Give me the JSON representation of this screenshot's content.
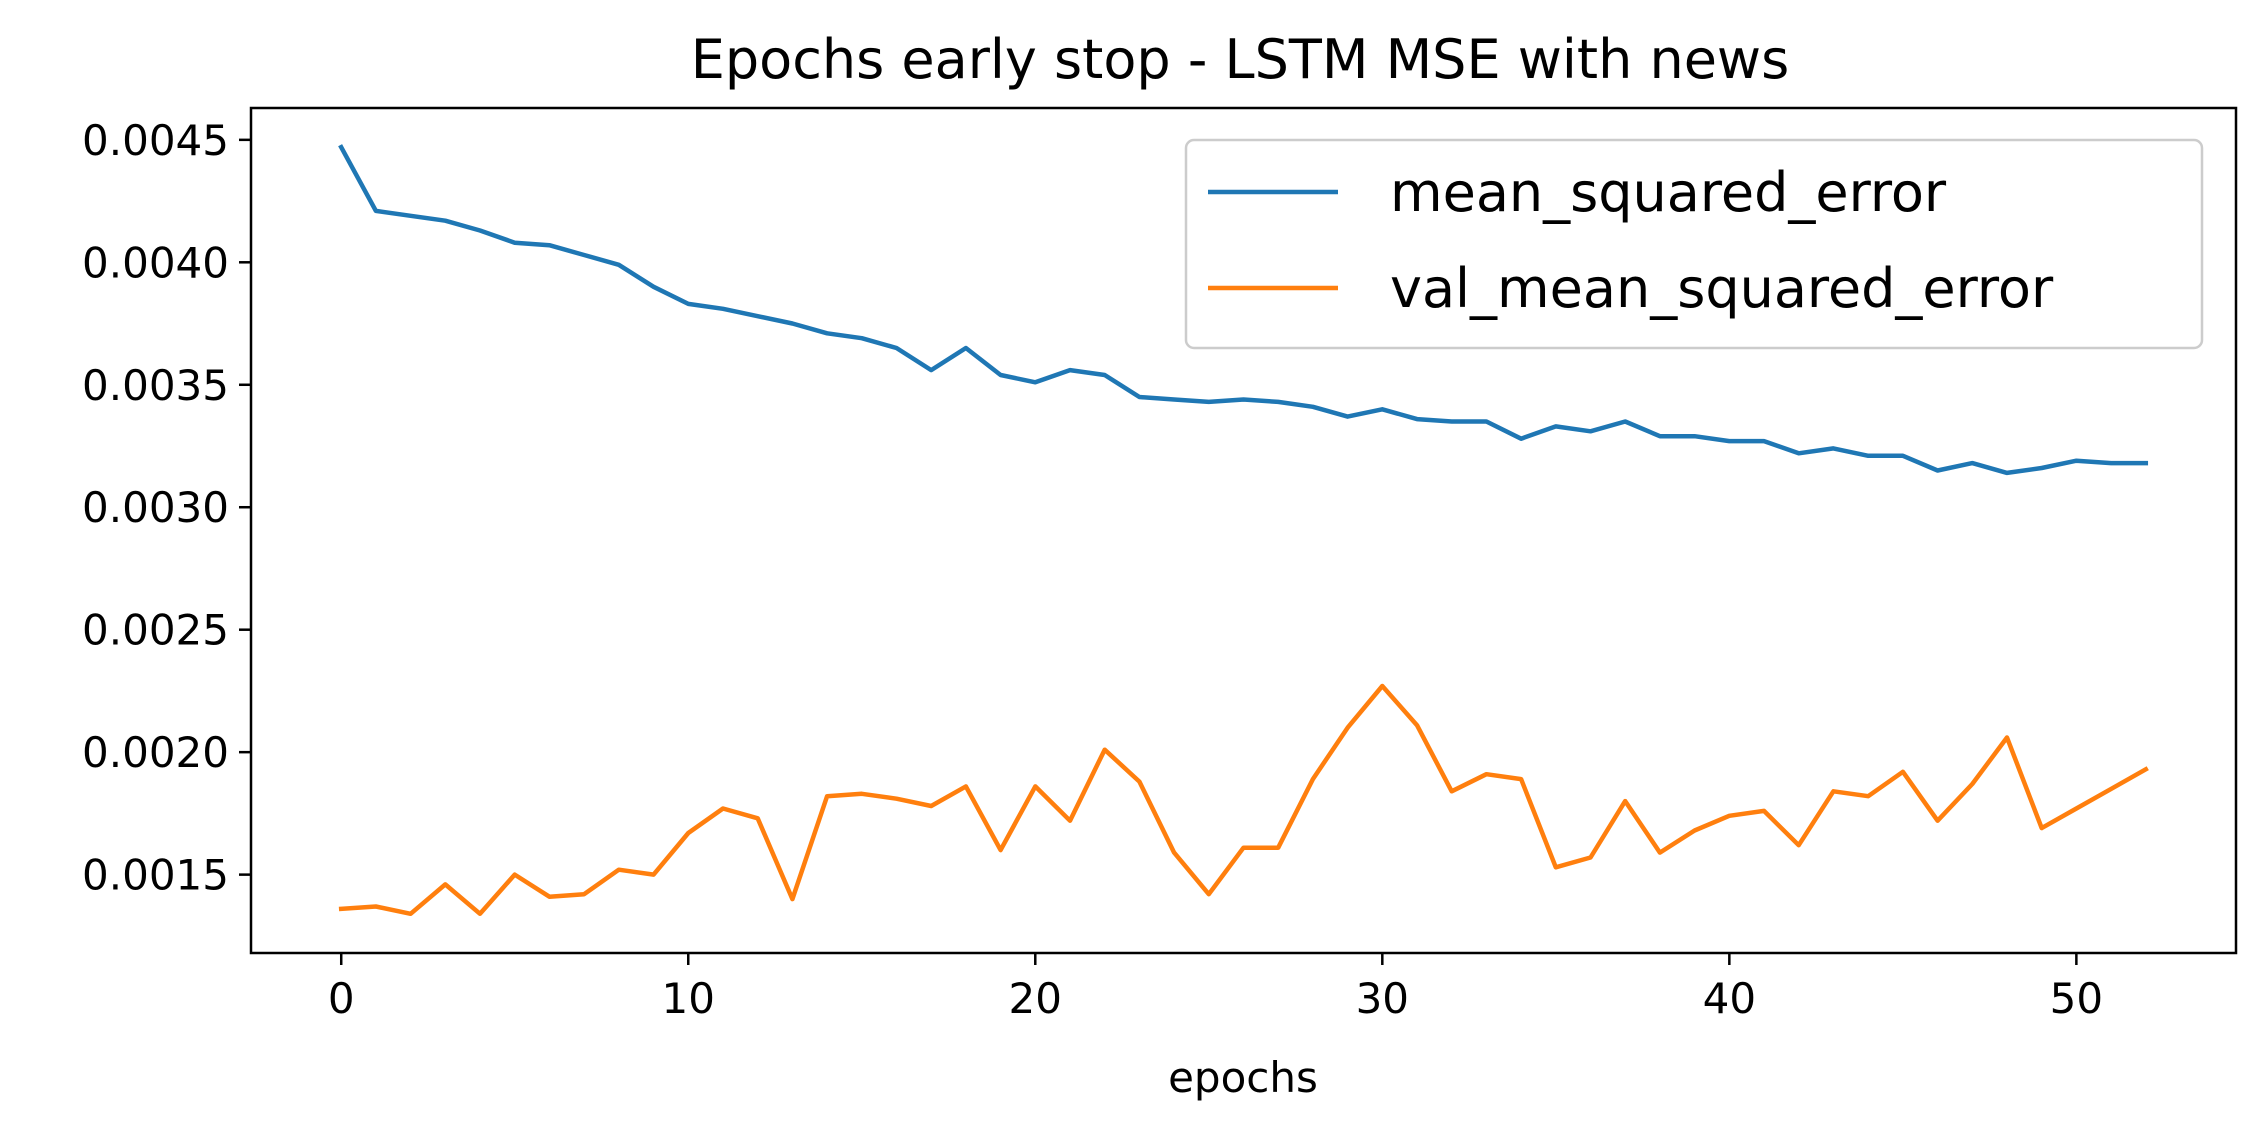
{
  "chart_data": {
    "type": "line",
    "title": "Epochs early stop - LSTM MSE with news",
    "xlabel": "epochs",
    "ylabel": "",
    "xlim": [
      -2.6,
      54.6
    ],
    "ylim": [
      0.00118,
      0.00463
    ],
    "x_ticks": [
      0,
      10,
      20,
      30,
      40,
      50
    ],
    "y_ticks": [
      0.0015,
      0.002,
      0.0025,
      0.003,
      0.0035,
      0.004,
      0.0045
    ],
    "x_tick_labels": [
      "0",
      "10",
      "20",
      "30",
      "40",
      "50"
    ],
    "y_tick_labels": [
      "0.0015",
      "0.0020",
      "0.0025",
      "0.0030",
      "0.0035",
      "0.0040",
      "0.0045"
    ],
    "grid": false,
    "legend_position": "upper right",
    "x": [
      0,
      1,
      2,
      3,
      4,
      5,
      6,
      7,
      8,
      9,
      10,
      11,
      12,
      13,
      14,
      15,
      16,
      17,
      18,
      19,
      20,
      21,
      22,
      23,
      24,
      25,
      26,
      27,
      28,
      29,
      30,
      31,
      32,
      33,
      34,
      35,
      36,
      37,
      38,
      39,
      40,
      41,
      42,
      43,
      44,
      45,
      46,
      47,
      48,
      49,
      50,
      51,
      52
    ],
    "series": [
      {
        "name": "mean_squared_error",
        "color": "#1f77b4",
        "values": [
          0.00447,
          0.00421,
          0.00419,
          0.00417,
          0.00413,
          0.00408,
          0.00407,
          0.00403,
          0.00399,
          0.0039,
          0.00383,
          0.00381,
          0.00378,
          0.00375,
          0.00371,
          0.00369,
          0.00365,
          0.00356,
          0.00365,
          0.00354,
          0.00351,
          0.00356,
          0.00354,
          0.00345,
          0.00344,
          0.00343,
          0.00344,
          0.00343,
          0.00341,
          0.00337,
          0.0034,
          0.00336,
          0.00335,
          0.00335,
          0.00328,
          0.00333,
          0.00331,
          0.00335,
          0.00329,
          0.00329,
          0.00327,
          0.00327,
          0.00322,
          0.00324,
          0.00321,
          0.00321,
          0.00315,
          0.00318,
          0.00314,
          0.00316,
          0.00319,
          0.00318,
          0.00318
        ]
      },
      {
        "name": "val_mean_squared_error",
        "color": "#ff7f0e",
        "values": [
          0.00136,
          0.00137,
          0.00134,
          0.00146,
          0.00134,
          0.0015,
          0.00141,
          0.00142,
          0.00152,
          0.0015,
          0.00167,
          0.00177,
          0.00173,
          0.0014,
          0.00182,
          0.00183,
          0.00181,
          0.00178,
          0.00186,
          0.0016,
          0.00186,
          0.00172,
          0.00201,
          0.00188,
          0.00159,
          0.00142,
          0.00161,
          0.00161,
          0.00189,
          0.0021,
          0.00227,
          0.00211,
          0.00184,
          0.00191,
          0.00189,
          0.00153,
          0.00157,
          0.0018,
          0.00159,
          0.00168,
          0.00174,
          0.00176,
          0.00162,
          0.00184,
          0.00182,
          0.00192,
          0.00172,
          0.00187,
          0.00206,
          0.00169,
          0.00177,
          0.00185,
          0.00193
        ]
      }
    ]
  }
}
